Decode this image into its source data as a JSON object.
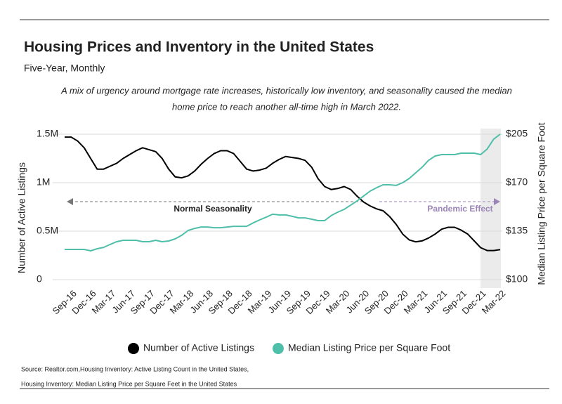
{
  "chart_data": {
    "type": "line",
    "title": "Housing Prices and Inventory in the United States",
    "subtitle": "Five-Year, Monthly",
    "description": [
      "A mix of urgency around mortgage rate increases, historically low inventory, and seasonality caused the median",
      "home price to reach another all-time high in March 2022."
    ],
    "ylabel": "Number of Active Listings",
    "y2label": "Median Listing Price per Square Foot",
    "annotations": [
      "Normal Seasonality",
      "Pandemic Effect"
    ],
    "source": [
      "Source:  Realtor.com,Housing Inventory: Active Listing Count in the United States,",
      "Housing Inventory: Median Listing Price per Square Feet in the United States"
    ],
    "categories": [
      null,
      "Sep-16",
      null,
      null,
      "Dec-16",
      null,
      null,
      "Mar-17",
      null,
      null,
      "Jun-17",
      null,
      null,
      "Sep-17",
      null,
      null,
      "Dec-17",
      null,
      null,
      "Mar-18",
      null,
      null,
      "Jun-18",
      null,
      null,
      "Sep-18",
      null,
      null,
      "Dec-18",
      null,
      null,
      "Mar-19",
      null,
      null,
      "Jun-19",
      null,
      null,
      "Sep-19",
      null,
      null,
      "Dec-19",
      null,
      null,
      "Mar-20",
      null,
      null,
      "Jun-20",
      null,
      null,
      "Sep-20",
      null,
      null,
      "Dec-20",
      null,
      null,
      "Mar-21",
      null,
      null,
      "Jun-21",
      null,
      null,
      "Sep-21",
      null,
      null,
      "Dec-21",
      null,
      null,
      "Mar-22"
    ],
    "series": [
      {
        "name": "Number of Active Listings",
        "color": "#000000",
        "axis": "y",
        "values": [
          1470000,
          1470000,
          1430000,
          1360000,
          1250000,
          1140000,
          1140000,
          1170000,
          1200000,
          1250000,
          1290000,
          1330000,
          1360000,
          1340000,
          1320000,
          1250000,
          1140000,
          1060000,
          1050000,
          1070000,
          1120000,
          1190000,
          1250000,
          1300000,
          1330000,
          1330000,
          1300000,
          1220000,
          1140000,
          1120000,
          1130000,
          1150000,
          1200000,
          1240000,
          1270000,
          1260000,
          1250000,
          1230000,
          1160000,
          1040000,
          960000,
          930000,
          940000,
          960000,
          930000,
          860000,
          800000,
          760000,
          730000,
          710000,
          650000,
          570000,
          470000,
          410000,
          390000,
          400000,
          430000,
          470000,
          520000,
          540000,
          540000,
          510000,
          470000,
          400000,
          330000,
          300000,
          300000,
          310000
        ]
      },
      {
        "name": "Median Listing Price per Square Foot",
        "color": "#4fbfaa",
        "axis": "y2",
        "values": [
          121.8,
          121.8,
          121.8,
          121.8,
          120.8,
          122.3,
          123.3,
          125.4,
          127.4,
          128.4,
          128.4,
          128.4,
          127.4,
          127.4,
          128.4,
          127.4,
          127.9,
          129.4,
          132,
          135.5,
          137,
          138,
          138,
          137.5,
          137.5,
          138,
          138.5,
          138.5,
          138.5,
          141,
          143.1,
          145.1,
          147.2,
          146.7,
          146.7,
          145.7,
          144.6,
          144.6,
          143.6,
          142.6,
          142.6,
          146.2,
          148.7,
          150.7,
          153.8,
          156.8,
          160.4,
          163.9,
          166.4,
          168.5,
          168.5,
          168,
          170,
          173,
          177.1,
          181.2,
          186.2,
          189.3,
          190.3,
          190.3,
          190.3,
          191.3,
          191.3,
          191.3,
          190.3,
          194.3,
          201.4,
          205
        ]
      }
    ],
    "ylim": [
      0,
      1500000
    ],
    "yticks": [
      0,
      {
        "value": 500000,
        "label": "0.5M"
      },
      {
        "value": 1000000,
        "label": "1M"
      },
      {
        "value": 1500000,
        "label": "1.5M"
      }
    ],
    "y2lim": [
      100,
      205
    ],
    "y2ticks": [
      {
        "value": 100,
        "label": "$100"
      },
      {
        "value": 135,
        "label": "$135"
      },
      {
        "value": 170,
        "label": "$170"
      },
      {
        "value": 205,
        "label": "$205"
      }
    ],
    "grid": true,
    "legend": "bottom"
  }
}
